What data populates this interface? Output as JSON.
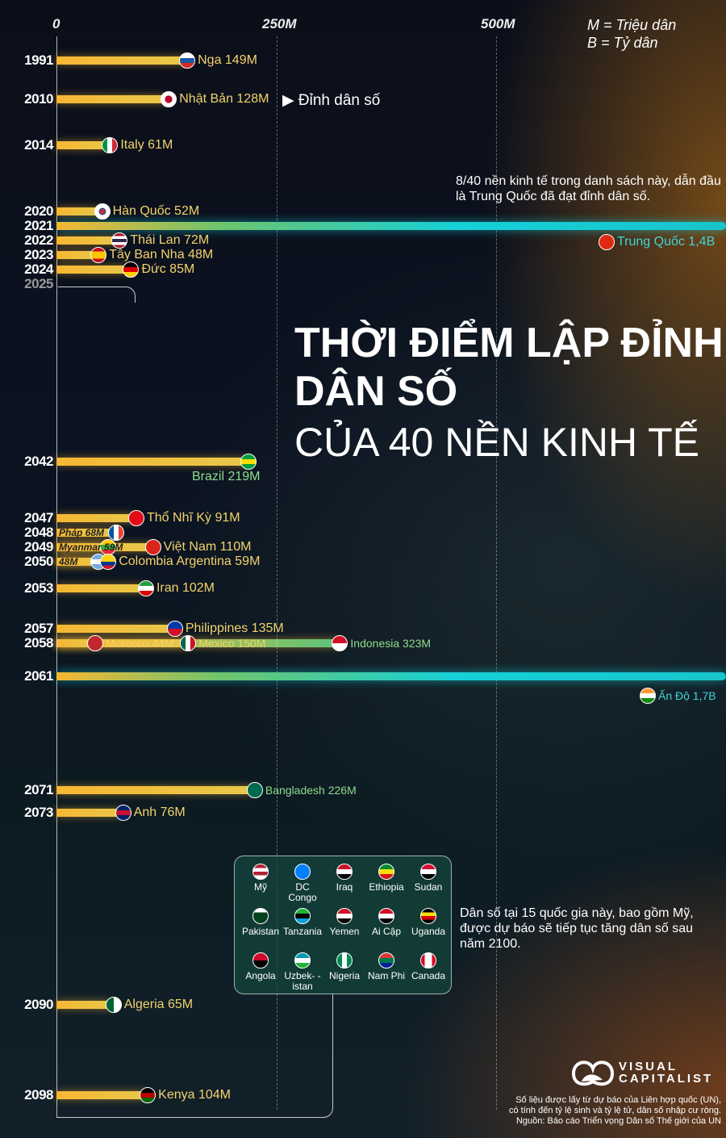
{
  "chart_data": {
    "type": "bar",
    "title": "THỜI ĐIỂM LẬP ĐỈNH DÂN SỐ",
    "subtitle": "CỦA 40 NỀN KINH TẾ",
    "x_ticks": [
      "0",
      "250M",
      "500M"
    ],
    "xlim": [
      0,
      760
    ],
    "unit_note": [
      "M = Triệu dân",
      "B = Tỷ dân"
    ],
    "year_labels": [
      "1991",
      "2010",
      "2014",
      "2020",
      "2021",
      "2022",
      "2023",
      "2024",
      "2025",
      "2042",
      "2047",
      "2048",
      "2049",
      "2050",
      "2053",
      "2057",
      "2058",
      "2061",
      "2071",
      "2073",
      "2090",
      "2098"
    ],
    "series": [
      {
        "year": 1991,
        "country": "Nga",
        "value": 149,
        "label": "Nga 149M",
        "flag": [
          "#fff",
          "#1c57a5",
          "#d52b1e"
        ]
      },
      {
        "year": 2010,
        "country": "Nhật Bản",
        "value": 128,
        "label": "Nhật Bản 128M",
        "flag": [
          "japan"
        ]
      },
      {
        "year": 2014,
        "country": "Italy",
        "value": 61,
        "label": "Italy 61M",
        "flag": [
          "v",
          "#009246",
          "#fff",
          "#ce2b37"
        ]
      },
      {
        "year": 2020,
        "country": "Hàn Quốc",
        "value": 52,
        "label": "Hàn Quốc 52M",
        "flag": [
          "korea"
        ]
      },
      {
        "year": 2021,
        "country": "Trung Quốc",
        "value": 1400,
        "label": "Trung Quốc 1,4B",
        "flag": [
          "#de2910"
        ]
      },
      {
        "year": 2022,
        "country": "Thái Lan",
        "value": 72,
        "label": "Thái Lan 72M",
        "flag": [
          "#a51931",
          "#fff",
          "#2d2a4a",
          "#fff",
          "#a51931"
        ]
      },
      {
        "year": 2023,
        "country": "Tây Ban Nha",
        "value": 48,
        "label": "Tây Ban Nha 48M",
        "flag": [
          "#c60b1e",
          "#ffc400",
          "#ffc400",
          "#c60b1e"
        ]
      },
      {
        "year": 2024,
        "country": "Đức",
        "value": 85,
        "label": "Đức 85M",
        "flag": [
          "#000",
          "#dd0000",
          "#ffce00"
        ]
      },
      {
        "year": 2042,
        "country": "Brazil",
        "value": 219,
        "label": "Brazil 219M",
        "flag": [
          "#009c3b",
          "#ffdf00",
          "#009c3b"
        ]
      },
      {
        "year": 2047,
        "country": "Thổ Nhĩ Kỳ",
        "value": 91,
        "label": "Thổ Nhĩ Kỳ 91M",
        "flag": [
          "#e30a17"
        ]
      },
      {
        "year": 2048,
        "country": "Pháp",
        "value": 68,
        "label": "Pháp 68M",
        "flag": [
          "v",
          "#0055a4",
          "#fff",
          "#ef4135"
        ]
      },
      {
        "year": 2049,
        "country": "Myanmar",
        "value": 59,
        "label": "Myanmar 59M",
        "flag": [
          "#fecb00",
          "#34b233",
          "#ea2839"
        ]
      },
      {
        "year": 2049,
        "country": "Việt Nam",
        "value": 110,
        "label": "Việt Nam 110M",
        "flag": [
          "#da251d"
        ]
      },
      {
        "year": 2050,
        "country": "Argentina",
        "value": 48,
        "label": "48M",
        "flag": [
          "#74acdf",
          "#fff",
          "#74acdf"
        ]
      },
      {
        "year": 2050,
        "country": "Colombia",
        "value": 59,
        "label": "Colombia  Argentina 59M",
        "flag": [
          "#fcd116",
          "#fcd116",
          "#003893",
          "#ce1126"
        ]
      },
      {
        "year": 2053,
        "country": "Iran",
        "value": 102,
        "label": "Iran 102M",
        "flag": [
          "#239f40",
          "#fff",
          "#da0000"
        ]
      },
      {
        "year": 2057,
        "country": "Philippines",
        "value": 135,
        "label": "Philippines 135M",
        "flag": [
          "#0038a8",
          "#ce1126"
        ]
      },
      {
        "year": 2058,
        "country": "Morocco",
        "value": 44,
        "label": "Morocco 44M",
        "flag": [
          "#c1272d"
        ]
      },
      {
        "year": 2058,
        "country": "Mexico",
        "value": 150,
        "label": "Mexico 150M",
        "flag": [
          "v",
          "#006847",
          "#fff",
          "#ce1126"
        ]
      },
      {
        "year": 2058,
        "country": "Indonesia",
        "value": 323,
        "label": "Indonesia 323M",
        "flag": [
          "#ce1126",
          "#fff"
        ]
      },
      {
        "year": 2061,
        "country": "Ấn Độ",
        "value": 1700,
        "label": "Ấn Độ 1,7B",
        "flag": [
          "#ff9933",
          "#fff",
          "#138808"
        ]
      },
      {
        "year": 2071,
        "country": "Bangladesh",
        "value": 226,
        "label": "Bangladesh 226M",
        "flag": [
          "#006a4e"
        ]
      },
      {
        "year": 2073,
        "country": "Anh",
        "value": 76,
        "label": "Anh 76M",
        "flag": [
          "#012169",
          "#c8102e",
          "#012169"
        ]
      },
      {
        "year": 2090,
        "country": "Algeria",
        "value": 65,
        "label": "Algeria 65M",
        "flag": [
          "v",
          "#006233",
          "#fff"
        ]
      },
      {
        "year": 2098,
        "country": "Kenya",
        "value": 104,
        "label": "Kenya 104M",
        "flag": [
          "#000",
          "#bb0000",
          "#006600"
        ]
      }
    ]
  },
  "annotations": {
    "japan_peak": "Đỉnh dân số",
    "peaked_note": "8/40 nền kinh tế trong danh sách này, dẫn đầu là Trung Quốc đã đạt đỉnh dân số.",
    "growing_note": "Dân số tại 15 quốc gia này, bao gồm Mỹ, được dự báo sẽ tiếp tục tăng dân số sau năm 2100."
  },
  "legend": [
    {
      "name": "Mỹ",
      "flag": [
        "#b22234",
        "#fff",
        "#b22234",
        "#fff"
      ]
    },
    {
      "name": "DC Congo",
      "flag": [
        "#007fff"
      ]
    },
    {
      "name": "Iraq",
      "flag": [
        "#ce1126",
        "#fff",
        "#000"
      ]
    },
    {
      "name": "Ethiopia",
      "flag": [
        "#078930",
        "#fcdd09",
        "#da121a"
      ]
    },
    {
      "name": "Sudan",
      "flag": [
        "#d21034",
        "#fff",
        "#000"
      ]
    },
    {
      "name": "Pakistan",
      "flag": [
        "#fff",
        "#01411c",
        "#01411c",
        "#01411c"
      ]
    },
    {
      "name": "Tanzania",
      "flag": [
        "#1eb53a",
        "#000",
        "#00a3dd"
      ]
    },
    {
      "name": "Yemen",
      "flag": [
        "#ce1126",
        "#fff",
        "#000"
      ]
    },
    {
      "name": "Ai Cập",
      "flag": [
        "#ce1126",
        "#fff",
        "#000"
      ]
    },
    {
      "name": "Uganda",
      "flag": [
        "#000",
        "#fcdc04",
        "#d90000",
        "#000"
      ]
    },
    {
      "name": "Angola",
      "flag": [
        "#cc092f",
        "#000"
      ]
    },
    {
      "name": "Uzbek- -istan",
      "flag": [
        "#0099b5",
        "#fff",
        "#1eb53a"
      ]
    },
    {
      "name": "Nigeria",
      "flag": [
        "v",
        "#008751",
        "#fff",
        "#008751"
      ]
    },
    {
      "name": "Nam Phi",
      "flag": [
        "#de3831",
        "#007a4d",
        "#002395"
      ]
    },
    {
      "name": "Canada",
      "flag": [
        "v",
        "#d80621",
        "#fff",
        "#fff",
        "#d80621"
      ]
    }
  ],
  "brand": {
    "name_line1": "VISUAL",
    "name_line2": "CAPITALIST"
  },
  "footer": [
    "Số liệu được lấy từ dự báo của Liên hợp quốc (UN),",
    "có tính đến tỷ lệ sinh và tỷ lệ tử, dân số nhập cư ròng.",
    "Nguồn: Báo cáo Triển vọng Dân số Thế giới của UN"
  ]
}
